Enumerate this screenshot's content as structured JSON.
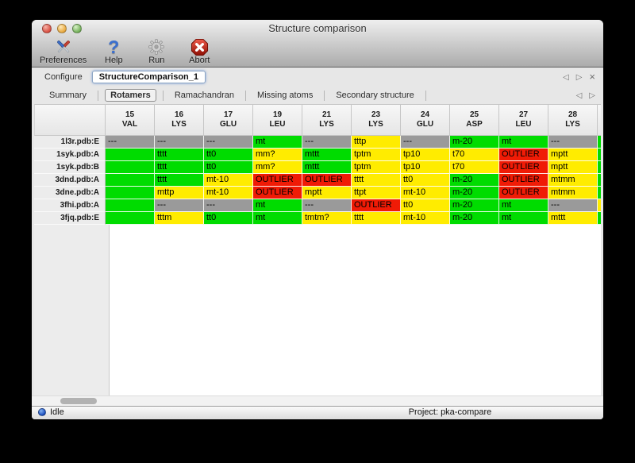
{
  "window": {
    "title": "Structure comparison"
  },
  "toolbar": {
    "items": [
      {
        "label": "Preferences",
        "icon": "tools-icon"
      },
      {
        "label": "Help",
        "icon": "question-icon"
      },
      {
        "label": "Run",
        "icon": "gear-icon"
      },
      {
        "label": "Abort",
        "icon": "abort-icon"
      }
    ]
  },
  "configure": {
    "label": "Configure",
    "value": "StructureComparison_1"
  },
  "pane_nav": {
    "prev": "◁",
    "next": "▷",
    "close": "×"
  },
  "tabs": [
    "Summary",
    "Rotamers",
    "Ramachandran",
    "Missing atoms",
    "Secondary structure"
  ],
  "active_tab": "Rotamers",
  "colors": {
    "green": "#00dc00",
    "yellow": "#ffec00",
    "red": "#f01b06",
    "gray": "#9a9a9a"
  },
  "table": {
    "columns": [
      {
        "num": "15",
        "res": "VAL"
      },
      {
        "num": "16",
        "res": "LYS"
      },
      {
        "num": "17",
        "res": "GLU"
      },
      {
        "num": "19",
        "res": "LEU"
      },
      {
        "num": "21",
        "res": "LYS"
      },
      {
        "num": "23",
        "res": "LYS"
      },
      {
        "num": "24",
        "res": "GLU"
      },
      {
        "num": "25",
        "res": "ASP"
      },
      {
        "num": "27",
        "res": "LEU"
      },
      {
        "num": "28",
        "res": "LYS"
      }
    ],
    "rows": [
      {
        "label": "1l3r.pdb:E",
        "edge": "green",
        "cells": [
          [
            "---",
            "gray"
          ],
          [
            "---",
            "gray"
          ],
          [
            "---",
            "gray"
          ],
          [
            "mt",
            "green"
          ],
          [
            "---",
            "gray"
          ],
          [
            "tttp",
            "yellow"
          ],
          [
            "---",
            "gray"
          ],
          [
            "m-20",
            "green"
          ],
          [
            "mt",
            "green"
          ],
          [
            "---",
            "gray"
          ]
        ]
      },
      {
        "label": "1syk.pdb:A",
        "edge": "green",
        "cells": [
          [
            "",
            "green"
          ],
          [
            "tttt",
            "green"
          ],
          [
            "tt0",
            "green"
          ],
          [
            "mm?",
            "yellow"
          ],
          [
            "mttt",
            "green"
          ],
          [
            "tptm",
            "yellow"
          ],
          [
            "tp10",
            "yellow"
          ],
          [
            "t70",
            "yellow"
          ],
          [
            "OUTLIER",
            "red"
          ],
          [
            "mptt",
            "yellow"
          ]
        ]
      },
      {
        "label": "1syk.pdb:B",
        "edge": "green",
        "cells": [
          [
            "",
            "green"
          ],
          [
            "tttt",
            "green"
          ],
          [
            "tt0",
            "green"
          ],
          [
            "mm?",
            "yellow"
          ],
          [
            "mttt",
            "green"
          ],
          [
            "tptm",
            "yellow"
          ],
          [
            "tp10",
            "yellow"
          ],
          [
            "t70",
            "yellow"
          ],
          [
            "OUTLIER",
            "red"
          ],
          [
            "mptt",
            "yellow"
          ]
        ]
      },
      {
        "label": "3dnd.pdb:A",
        "edge": "green",
        "cells": [
          [
            "",
            "green"
          ],
          [
            "tttt",
            "green"
          ],
          [
            "mt-10",
            "yellow"
          ],
          [
            "OUTLIER",
            "red"
          ],
          [
            "OUTLIER",
            "red"
          ],
          [
            "tttt",
            "yellow"
          ],
          [
            "tt0",
            "yellow"
          ],
          [
            "m-20",
            "green"
          ],
          [
            "OUTLIER",
            "red"
          ],
          [
            "mtmm",
            "yellow"
          ]
        ]
      },
      {
        "label": "3dne.pdb:A",
        "edge": "green",
        "cells": [
          [
            "",
            "green"
          ],
          [
            "mttp",
            "yellow"
          ],
          [
            "mt-10",
            "yellow"
          ],
          [
            "OUTLIER",
            "red"
          ],
          [
            "mptt",
            "yellow"
          ],
          [
            "ttpt",
            "yellow"
          ],
          [
            "mt-10",
            "yellow"
          ],
          [
            "m-20",
            "green"
          ],
          [
            "OUTLIER",
            "red"
          ],
          [
            "mtmm",
            "yellow"
          ]
        ]
      },
      {
        "label": "3fhi.pdb:A",
        "edge": "yellow",
        "cells": [
          [
            "",
            "green"
          ],
          [
            "---",
            "gray"
          ],
          [
            "---",
            "gray"
          ],
          [
            "mt",
            "green"
          ],
          [
            "---",
            "gray"
          ],
          [
            "OUTLIER",
            "red"
          ],
          [
            "tt0",
            "yellow"
          ],
          [
            "m-20",
            "green"
          ],
          [
            "mt",
            "green"
          ],
          [
            "---",
            "gray"
          ]
        ]
      },
      {
        "label": "3fjq.pdb:E",
        "edge": "green",
        "cells": [
          [
            "",
            "green"
          ],
          [
            "tttm",
            "yellow"
          ],
          [
            "tt0",
            "green"
          ],
          [
            "mt",
            "green"
          ],
          [
            "tmtm?",
            "yellow"
          ],
          [
            "tttt",
            "yellow"
          ],
          [
            "mt-10",
            "yellow"
          ],
          [
            "m-20",
            "green"
          ],
          [
            "mt",
            "green"
          ],
          [
            "mttt",
            "yellow"
          ]
        ]
      }
    ]
  },
  "statusbar": {
    "left": "Idle",
    "right": "Project: pka-compare"
  }
}
